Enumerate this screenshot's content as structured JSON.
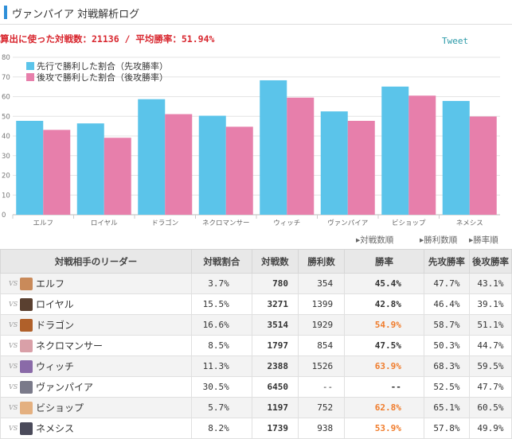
{
  "header": {
    "title": "ヴァンパイア 対戦解析ログ"
  },
  "summary": "算出に使った対戦数：21136 / 平均勝率：51.94%",
  "tweet": "Tweet",
  "colors": {
    "first": "#5bc4ea",
    "second": "#e77fab",
    "accent": "#2f8fd8",
    "highlight": "#f07b2a"
  },
  "chart_data": {
    "type": "bar",
    "categories": [
      "エルフ",
      "ロイヤル",
      "ドラゴン",
      "ネクロマンサー",
      "ウィッチ",
      "ヴァンパイア",
      "ビショップ",
      "ネメシス"
    ],
    "series": [
      {
        "name": "先行で勝利した割合（先攻勝率）",
        "values": [
          47.7,
          46.4,
          58.7,
          50.3,
          68.3,
          52.5,
          65.1,
          57.8
        ]
      },
      {
        "name": "後攻で勝利した割合（後攻勝率）",
        "values": [
          43.1,
          39.1,
          51.1,
          44.7,
          59.5,
          47.7,
          60.5,
          49.9
        ]
      }
    ],
    "yticks": [
      0,
      10,
      20,
      30,
      40,
      50,
      60,
      70,
      80
    ],
    "ytick_labels": [
      "0",
      "10",
      "20",
      "30",
      "40",
      "50",
      "60",
      "70",
      "80"
    ],
    "ylim": [
      0,
      80
    ],
    "grid": true,
    "legend": "top-left"
  },
  "sort_links": [
    "▸対戦数順",
    "▸勝利数順",
    "▸勝率順"
  ],
  "table": {
    "headers": [
      "対戦相手のリーダー",
      "対戦割合",
      "対戦数",
      "勝利数",
      "勝率",
      "先攻勝率",
      "後攻勝率"
    ],
    "vs": "VS",
    "rows": [
      {
        "leader": "エルフ",
        "ratio": "3.7%",
        "matches": "780",
        "wins": "354",
        "winrate": "45.4%",
        "first": "47.7%",
        "second": "43.1%",
        "icon": "elf-avatar-icon",
        "color": "#c98a5a"
      },
      {
        "leader": "ロイヤル",
        "ratio": "15.5%",
        "matches": "3271",
        "wins": "1399",
        "winrate": "42.8%",
        "first": "46.4%",
        "second": "39.1%",
        "icon": "royal-avatar-icon",
        "color": "#5a4030"
      },
      {
        "leader": "ドラゴン",
        "ratio": "16.6%",
        "matches": "3514",
        "wins": "1929",
        "winrate": "54.9%",
        "first": "58.7%",
        "second": "51.1%",
        "icon": "dragon-avatar-icon",
        "color": "#b0602a"
      },
      {
        "leader": "ネクロマンサー",
        "ratio": "8.5%",
        "matches": "1797",
        "wins": "854",
        "winrate": "47.5%",
        "first": "50.3%",
        "second": "44.7%",
        "icon": "necromancer-avatar-icon",
        "color": "#d9a0a8"
      },
      {
        "leader": "ウィッチ",
        "ratio": "11.3%",
        "matches": "2388",
        "wins": "1526",
        "winrate": "63.9%",
        "first": "68.3%",
        "second": "59.5%",
        "icon": "witch-avatar-icon",
        "color": "#8a6aa8"
      },
      {
        "leader": "ヴァンパイア",
        "ratio": "30.5%",
        "matches": "6450",
        "wins": "--",
        "winrate": "--",
        "first": "52.5%",
        "second": "47.7%",
        "icon": "vampire-avatar-icon",
        "color": "#7a7a8a"
      },
      {
        "leader": "ビショップ",
        "ratio": "5.7%",
        "matches": "1197",
        "wins": "752",
        "winrate": "62.8%",
        "first": "65.1%",
        "second": "60.5%",
        "icon": "bishop-avatar-icon",
        "color": "#e4b080"
      },
      {
        "leader": "ネメシス",
        "ratio": "8.2%",
        "matches": "1739",
        "wins": "938",
        "winrate": "53.9%",
        "first": "57.8%",
        "second": "49.9%",
        "icon": "nemesis-avatar-icon",
        "color": "#4a4a5a"
      }
    ],
    "highlighted": [
      "54.9%",
      "63.9%",
      "62.8%",
      "53.9%"
    ]
  }
}
